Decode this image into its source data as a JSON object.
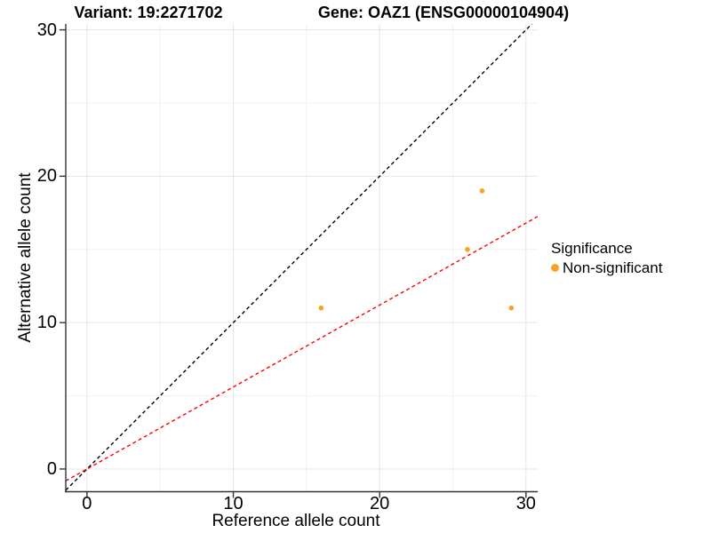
{
  "titles": {
    "variant": "Variant: 19:2271702",
    "gene": "Gene: OAZ1 (ENSG00000104904)"
  },
  "chart_data": {
    "type": "scatter",
    "title": "Variant: 19:2271702   Gene: OAZ1 (ENSG00000104904)",
    "xlabel": "Reference allele count",
    "ylabel": "Alternative allele count",
    "xlim": [
      -1.45,
      30.8
    ],
    "ylim": [
      -1.55,
      30.4
    ],
    "xticks": [
      0,
      10,
      20,
      30
    ],
    "yticks": [
      0,
      10,
      20,
      30
    ],
    "minor_xticks": [
      5,
      15,
      25
    ],
    "minor_yticks": [
      5,
      15,
      25
    ],
    "grid": "major+minor",
    "series": [
      {
        "name": "Non-significant",
        "color": "#F9A229",
        "marker": "circle",
        "points": [
          {
            "x": 16,
            "y": 11
          },
          {
            "x": 26,
            "y": 15
          },
          {
            "x": 27,
            "y": 19
          },
          {
            "x": 29,
            "y": 11
          }
        ]
      }
    ],
    "lines": [
      {
        "name": "identity",
        "slope": 1,
        "intercept": 0,
        "color": "#000000",
        "style": "dashed"
      },
      {
        "name": "fit",
        "slope": 0.56,
        "intercept": 0,
        "color": "#FF0000",
        "style": "dashed"
      }
    ],
    "legend": {
      "title": "Significance",
      "position": "right",
      "items": [
        {
          "label": "Non-significant",
          "color": "#F9A229"
        }
      ]
    }
  },
  "colors": {
    "background": "#FFFFFF",
    "grid_major": "#E4E4E4",
    "grid_minor": "#F1F1F1",
    "axis_line": "#333333",
    "point": "#F9A229",
    "identity_line": "#000000",
    "fit_line": "#FF0000"
  }
}
